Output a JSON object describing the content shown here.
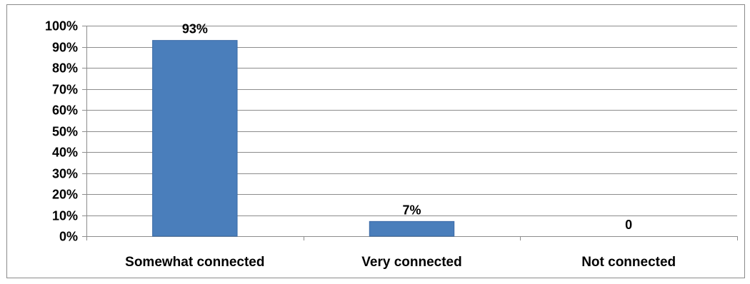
{
  "chart_data": {
    "type": "bar",
    "categories": [
      "Somewhat connected",
      "Very connected",
      "Not connected"
    ],
    "values": [
      93,
      7,
      0
    ],
    "data_labels": [
      "93%",
      "7%",
      "0"
    ],
    "ylim": [
      0,
      100
    ],
    "ytick_values": [
      0,
      10,
      20,
      30,
      40,
      50,
      60,
      70,
      80,
      90,
      100
    ],
    "ytick_labels": [
      "0%",
      "10%",
      "20%",
      "30%",
      "40%",
      "50%",
      "60%",
      "70%",
      "80%",
      "90%",
      "100%"
    ],
    "grid": true,
    "legend": "none",
    "title": "",
    "xlabel": "",
    "ylabel": "",
    "colors": {
      "bar": "#4a7ebb",
      "bar_edge": "#3a6aa6",
      "grid": "#8c8c8c",
      "axis": "#8c8c8c"
    }
  }
}
